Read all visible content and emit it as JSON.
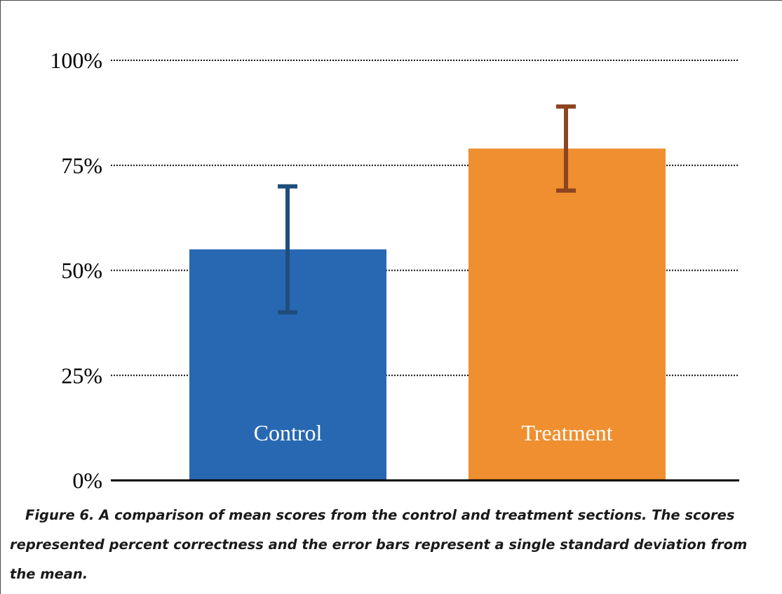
{
  "chart_data": {
    "type": "bar",
    "categories": [
      "Control",
      "Treatment"
    ],
    "values": [
      55,
      79
    ],
    "error_low": [
      40,
      69
    ],
    "error_high": [
      70,
      89
    ],
    "ylim": [
      0,
      100
    ],
    "yticks": [
      0,
      25,
      50,
      75,
      100
    ],
    "ytick_labels": [
      "0%",
      "25%",
      "50%",
      "75%",
      "100%"
    ],
    "grid": "dotted horizontal",
    "legend": "none",
    "colors": {
      "Control": "#2868B2",
      "Treatment": "#F08F2F",
      "Control_errorbar": "#1F4E7C",
      "Treatment_errorbar": "#8B4520"
    }
  },
  "caption": "Figure 6. A comparison of mean scores from the control and treatment sections. The scores represented percent correctness and the error bars represent a single standard deviation from the mean."
}
